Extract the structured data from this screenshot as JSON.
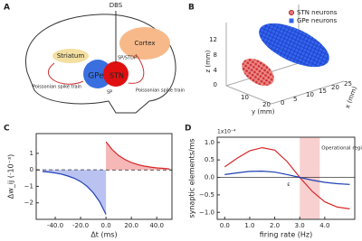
{
  "diagram": {
    "label": "A",
    "dbs": "DBS",
    "cortex": "Cortex",
    "striatum": "Striatum",
    "gpe": "GPe",
    "stn": "STN",
    "sp_stdp": "SP/STDP",
    "sp": "SP",
    "poisson_left": "Poissonian spike train",
    "poisson_right": "Poissonian spike train"
  },
  "scatter3d": {
    "label": "B",
    "legend": [
      "STN neurons",
      "GPe neurons"
    ],
    "zlabel": "z (mm)",
    "ylabel": "y (mm)",
    "xlabel": "x (mm)",
    "zticks": [
      "0",
      "4",
      "8",
      "12"
    ],
    "yticks": [
      "10",
      "20"
    ],
    "xticks": [
      "0",
      "5",
      "10",
      "15",
      "20",
      "25"
    ]
  },
  "chart_data": [
    {
      "type": "line",
      "panel": "C",
      "ylabel": "Δw_ij (·10⁻³)",
      "xlabel": "Δt (ms)",
      "xlim": [
        -55,
        52
      ],
      "ylim": [
        -3,
        2.2
      ],
      "xticks": [
        {
          "value": -40,
          "label": "-40.0"
        },
        {
          "value": -20,
          "label": "-20.0"
        },
        {
          "value": 0,
          "label": "0.0"
        },
        {
          "value": 20,
          "label": "20.0"
        },
        {
          "value": 40,
          "label": "40.0"
        }
      ],
      "yticks": [
        {
          "value": -2,
          "label": "−2"
        },
        {
          "value": -1,
          "label": "−1"
        },
        0,
        1
      ],
      "series": [
        {
          "color": "#d62728",
          "fill": "#f4a5a5",
          "x": [
            0,
            5,
            10,
            15,
            20,
            25,
            30,
            35,
            40,
            45,
            50
          ],
          "values": [
            1.7,
            1.22,
            0.87,
            0.63,
            0.45,
            0.32,
            0.23,
            0.17,
            0.12,
            0.09,
            0.06
          ]
        },
        {
          "color": "#1f3fb4",
          "fill": "#a9b3ee",
          "x": [
            -50,
            -45,
            -40,
            -35,
            -30,
            -25,
            -20,
            -15,
            -10,
            -5,
            0
          ],
          "values": [
            -0.1,
            -0.13,
            -0.19,
            -0.26,
            -0.37,
            -0.51,
            -0.71,
            -0.99,
            -1.39,
            -1.93,
            -2.7
          ]
        }
      ]
    },
    {
      "type": "line",
      "panel": "D",
      "ylabel": "synaptic elements/ms",
      "xlabel": "firing rate (Hz)",
      "scale_label": "1x10⁻⁴",
      "annotation": "Operational region of interest",
      "epsilon": "ε",
      "highlight": [
        3.0,
        3.8
      ],
      "xlim": [
        -0.3,
        5.2
      ],
      "ylim": [
        -1.2,
        1.15
      ],
      "xticks": [
        {
          "value": 0,
          "label": "0.0"
        },
        {
          "value": 1,
          "label": "1.0"
        },
        {
          "value": 2,
          "label": "2.0"
        },
        {
          "value": 3,
          "label": "3.0"
        },
        {
          "value": 4,
          "label": "4.0"
        }
      ],
      "yticks": [
        {
          "value": -1,
          "label": "−1.0"
        },
        {
          "value": -0.5,
          "label": "−0.5"
        },
        {
          "value": 0,
          "label": "0.0"
        },
        {
          "value": 0.5,
          "label": "0.5"
        },
        {
          "value": 1,
          "label": "1.0"
        }
      ],
      "series": [
        {
          "color": "#d62728",
          "x": [
            0,
            0.5,
            1,
            1.5,
            2,
            2.5,
            3,
            3.5,
            4,
            4.5,
            5
          ],
          "values": [
            0.3,
            0.55,
            0.76,
            0.85,
            0.78,
            0.45,
            0,
            -0.4,
            -0.7,
            -0.85,
            -0.9
          ]
        },
        {
          "color": "#1f3fb4",
          "x": [
            0,
            0.5,
            1,
            1.5,
            2,
            2.5,
            3,
            3.5,
            4,
            4.5,
            5
          ],
          "values": [
            0.08,
            0.13,
            0.17,
            0.18,
            0.15,
            0.08,
            0,
            -0.08,
            -0.14,
            -0.18,
            -0.2
          ]
        }
      ]
    }
  ]
}
